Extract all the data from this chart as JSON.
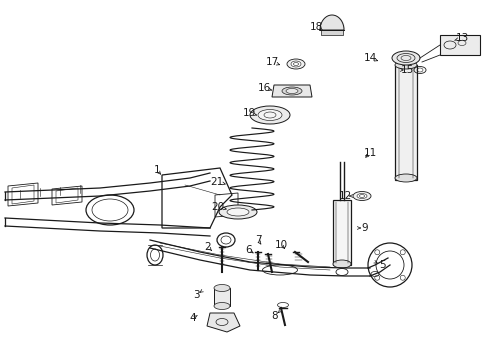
{
  "bg_color": "#ffffff",
  "line_color": "#1a1a1a",
  "figsize": [
    4.89,
    3.6
  ],
  "dpi": 100,
  "labels": {
    "1": [
      157,
      170,
      163,
      177
    ],
    "2": [
      208,
      247,
      214,
      253
    ],
    "3": [
      196,
      295,
      202,
      291
    ],
    "4": [
      193,
      318,
      200,
      314
    ],
    "5": [
      382,
      265,
      375,
      262
    ],
    "6": [
      249,
      250,
      256,
      255
    ],
    "7": [
      258,
      240,
      263,
      247
    ],
    "8": [
      275,
      316,
      280,
      311
    ],
    "9": [
      365,
      228,
      358,
      228
    ],
    "10": [
      281,
      245,
      287,
      251
    ],
    "11": [
      370,
      153,
      363,
      160
    ],
    "12": [
      345,
      196,
      352,
      196
    ],
    "13": [
      462,
      38,
      449,
      42
    ],
    "14": [
      370,
      58,
      381,
      62
    ],
    "15": [
      407,
      70,
      401,
      70
    ],
    "16": [
      264,
      88,
      275,
      91
    ],
    "17": [
      272,
      62,
      283,
      66
    ],
    "18": [
      316,
      27,
      326,
      32
    ],
    "19": [
      249,
      113,
      260,
      116
    ],
    "20": [
      218,
      207,
      230,
      210
    ],
    "21": [
      217,
      182,
      229,
      185
    ]
  }
}
